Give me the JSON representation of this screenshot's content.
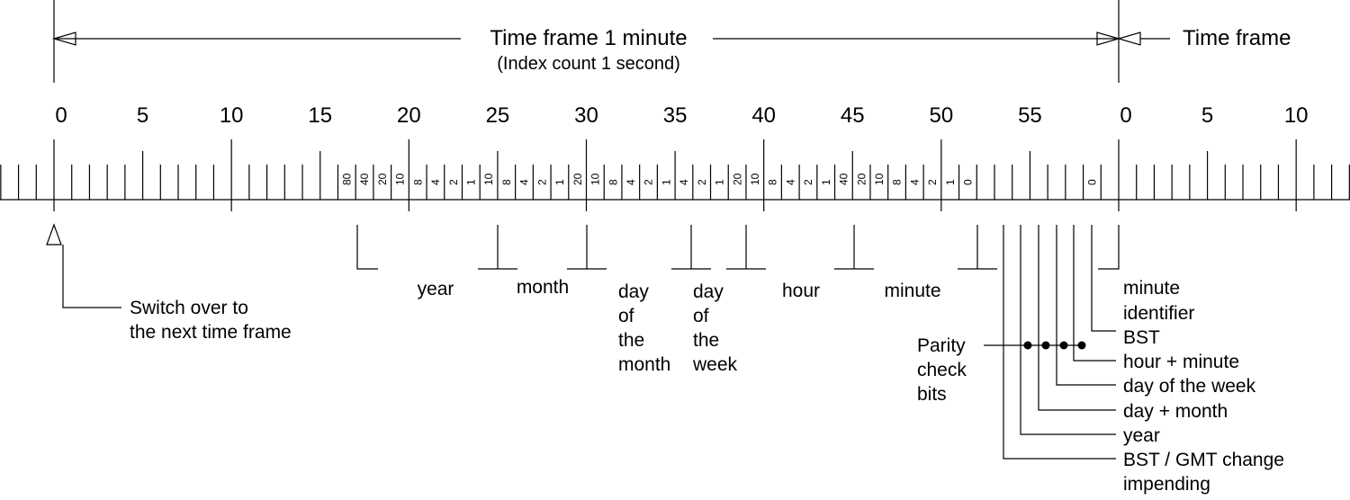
{
  "header": {
    "title": "Time frame 1 minute",
    "subtitle": "(Index count 1 second)",
    "next_frame": "Time frame"
  },
  "scale": {
    "major_labels": [
      "0",
      "5",
      "10",
      "15",
      "20",
      "25",
      "30",
      "35",
      "40",
      "45",
      "50",
      "55",
      "0",
      "5",
      "10"
    ],
    "bit_weights": [
      {
        "second": 17,
        "weight": "80"
      },
      {
        "second": 18,
        "weight": "40"
      },
      {
        "second": 19,
        "weight": "20"
      },
      {
        "second": 20,
        "weight": "10"
      },
      {
        "second": 21,
        "weight": "8"
      },
      {
        "second": 22,
        "weight": "4"
      },
      {
        "second": 23,
        "weight": "2"
      },
      {
        "second": 24,
        "weight": "1"
      },
      {
        "second": 25,
        "weight": "10"
      },
      {
        "second": 26,
        "weight": "8"
      },
      {
        "second": 27,
        "weight": "4"
      },
      {
        "second": 28,
        "weight": "2"
      },
      {
        "second": 29,
        "weight": "1"
      },
      {
        "second": 30,
        "weight": "20"
      },
      {
        "second": 31,
        "weight": "10"
      },
      {
        "second": 32,
        "weight": "8"
      },
      {
        "second": 33,
        "weight": "4"
      },
      {
        "second": 34,
        "weight": "2"
      },
      {
        "second": 35,
        "weight": "1"
      },
      {
        "second": 36,
        "weight": "4"
      },
      {
        "second": 37,
        "weight": "2"
      },
      {
        "second": 38,
        "weight": "1"
      },
      {
        "second": 39,
        "weight": "20"
      },
      {
        "second": 40,
        "weight": "10"
      },
      {
        "second": 41,
        "weight": "8"
      },
      {
        "second": 42,
        "weight": "4"
      },
      {
        "second": 43,
        "weight": "2"
      },
      {
        "second": 44,
        "weight": "1"
      },
      {
        "second": 45,
        "weight": "40"
      },
      {
        "second": 46,
        "weight": "20"
      },
      {
        "second": 47,
        "weight": "10"
      },
      {
        "second": 48,
        "weight": "8"
      },
      {
        "second": 49,
        "weight": "4"
      },
      {
        "second": 50,
        "weight": "2"
      },
      {
        "second": 51,
        "weight": "1"
      },
      {
        "second": 52,
        "weight": "0"
      },
      {
        "second": 59,
        "weight": "0"
      }
    ]
  },
  "fields": {
    "year": "year",
    "month": "month",
    "day_of_month": [
      "day",
      "of",
      "the",
      "month"
    ],
    "day_of_week": [
      "day",
      "of",
      "the",
      "week"
    ],
    "hour": "hour",
    "minute": "minute"
  },
  "switch_over": [
    "Switch over to",
    "the next time frame"
  ],
  "parity": [
    "Parity",
    "check",
    "bits"
  ],
  "right_labels": {
    "minute_identifier": [
      "minute",
      "identifier"
    ],
    "bst": "BST",
    "hour_minute": "hour + minute",
    "day_of_week": "day of the week",
    "day_month": "day + month",
    "year": "year",
    "bst_gmt": [
      "BST / GMT change",
      "impending"
    ]
  }
}
